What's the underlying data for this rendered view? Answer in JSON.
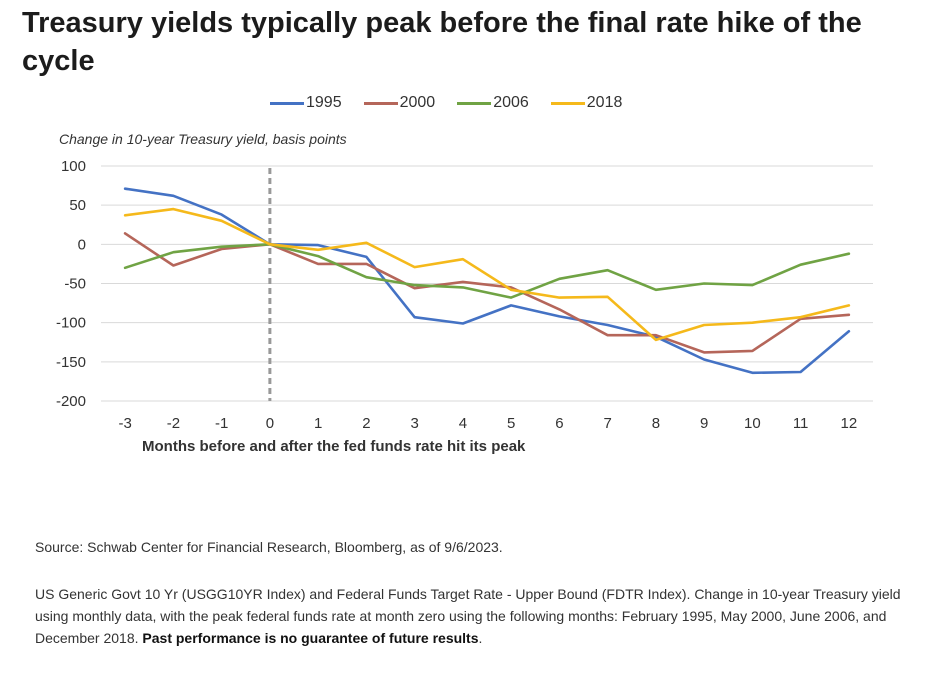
{
  "title": "Treasury yields typically peak before the final rate hike of the cycle",
  "source": "Source: Schwab Center for Financial Research, Bloomberg, as of 9/6/2023.",
  "note_text": "US Generic Govt 10 Yr (USGG10YR Index) and Federal Funds Target Rate - Upper Bound (FDTR Index). Change in 10-year Treasury yield using monthly data, with the peak federal funds rate at month zero using the following months: February 1995, May 2000, June 2006, and December 2018. ",
  "note_bold": "Past performance is no guarantee of future results",
  "note_end": ".",
  "chart_data": {
    "type": "line",
    "title": "Treasury yields typically peak before the final rate hike of the cycle",
    "xlabel": "Months before and after the fed funds rate hit its peak",
    "ylabel": "Change in 10-year Treasury yield, basis points",
    "x": [
      -3,
      -2,
      -1,
      0,
      1,
      2,
      3,
      4,
      5,
      6,
      7,
      8,
      9,
      10,
      11,
      12
    ],
    "ylim": [
      -200,
      100
    ],
    "yticks": [
      100,
      50,
      0,
      -50,
      -100,
      -150,
      -200
    ],
    "grid": true,
    "legend_position": "top",
    "reference_line_x": 0,
    "series": [
      {
        "name": "1995",
        "color": "#4472c4",
        "values": [
          71,
          62,
          38,
          0,
          -1,
          -16,
          -93,
          -101,
          -78,
          -92,
          -103,
          -118,
          -147,
          -164,
          -163,
          -111
        ]
      },
      {
        "name": "2000",
        "color": "#b5665a",
        "values": [
          14,
          -27,
          -6,
          0,
          -25,
          -25,
          -56,
          -48,
          -55,
          -83,
          -116,
          -116,
          -138,
          -136,
          -95,
          -90
        ]
      },
      {
        "name": "2006",
        "color": "#70a344",
        "values": [
          -30,
          -10,
          -3,
          0,
          -15,
          -42,
          -52,
          -55,
          -68,
          -44,
          -33,
          -58,
          -50,
          -52,
          -26,
          -12
        ]
      },
      {
        "name": "2018",
        "color": "#f5b91b",
        "values": [
          37,
          45,
          30,
          0,
          -7,
          2,
          -29,
          -19,
          -58,
          -68,
          -67,
          -122,
          -103,
          -100,
          -93,
          -78
        ]
      }
    ]
  }
}
